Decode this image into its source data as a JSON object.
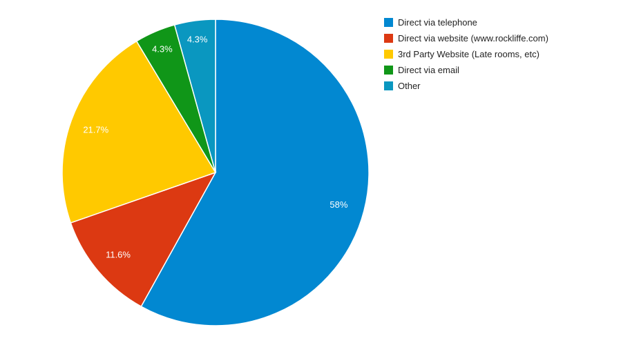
{
  "chart_data": {
    "type": "pie",
    "title": "",
    "legend_position": "right",
    "slices": [
      {
        "name": "Direct via telephone",
        "value": 58,
        "label": "58%",
        "color": "#0288d1"
      },
      {
        "name": "Direct via website (www.rockliffe.com)",
        "value": 11.6,
        "label": "11.6%",
        "color": "#dc3912"
      },
      {
        "name": "3rd Party Website (Late rooms, etc)",
        "value": 21.7,
        "label": "21.7%",
        "color": "#ffc900"
      },
      {
        "name": "Direct via email",
        "value": 4.3,
        "label": "4.3%",
        "color": "#109618"
      },
      {
        "name": "Other",
        "value": 4.3,
        "label": "4.3%",
        "color": "#0a97c0"
      }
    ]
  }
}
